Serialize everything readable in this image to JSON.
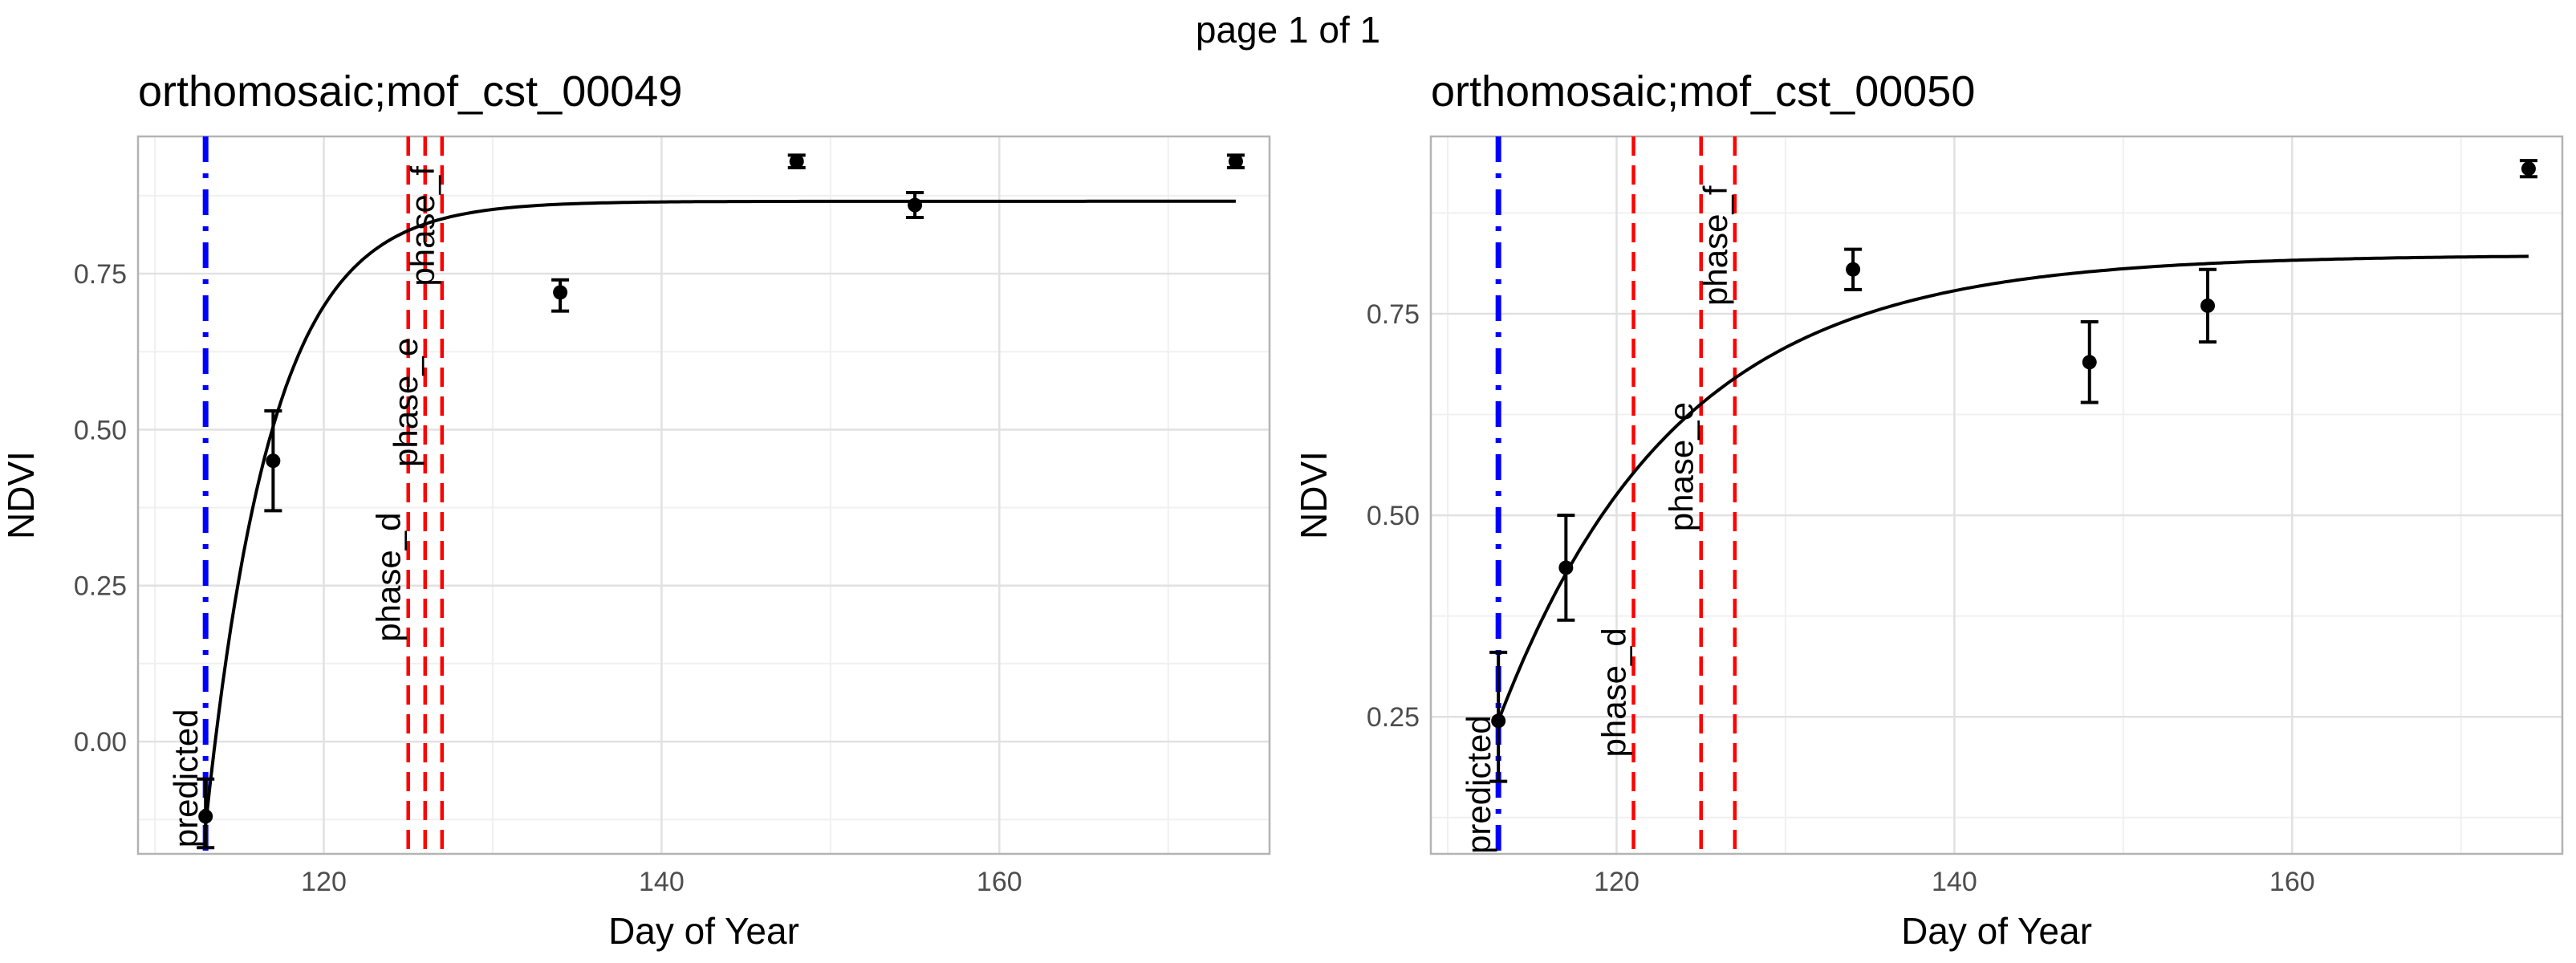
{
  "page": {
    "title": "page 1 of 1"
  },
  "chart_data": [
    {
      "type": "line",
      "title": "orthomosaic;mof_cst_00049",
      "xlabel": "Day of Year",
      "ylabel": "NDVI",
      "xlim": [
        109,
        176
      ],
      "ylim": [
        -0.18,
        0.97
      ],
      "x_ticks": [
        120,
        140,
        160
      ],
      "y_ticks": [
        0.0,
        0.25,
        0.5,
        0.75
      ],
      "y_tick_labels": [
        "0.00",
        "0.25",
        "0.50",
        "0.75"
      ],
      "grid": true,
      "points": [
        {
          "x": 113,
          "y": -0.12,
          "ymin": -0.17,
          "ymax": -0.06
        },
        {
          "x": 117,
          "y": 0.45,
          "ymin": 0.37,
          "ymax": 0.53
        },
        {
          "x": 134,
          "y": 0.72,
          "ymin": 0.69,
          "ymax": 0.74
        },
        {
          "x": 148,
          "y": 0.93,
          "ymin": 0.92,
          "ymax": 0.94
        },
        {
          "x": 155,
          "y": 0.86,
          "ymin": 0.84,
          "ymax": 0.88
        },
        {
          "x": 174,
          "y": 0.93,
          "ymin": 0.92,
          "ymax": 0.94
        }
      ],
      "fitted_curve": {
        "x0": 113,
        "y0": -0.135,
        "asymptote": 0.866,
        "rate": 0.255,
        "x_end": 174
      },
      "vlines": [
        {
          "x": 113,
          "label": "predicted",
          "color": "#0000ff",
          "style": "dashdot"
        },
        {
          "x": 125,
          "label": "phase_d",
          "color": "#ff0000",
          "style": "dashed"
        },
        {
          "x": 126,
          "label": "phase_e",
          "color": "#ff0000",
          "style": "dashed"
        },
        {
          "x": 127,
          "label": "phase_f",
          "color": "#ff0000",
          "style": "dashed"
        }
      ]
    },
    {
      "type": "line",
      "title": "orthomosaic;mof_cst_00050",
      "xlabel": "Day of Year",
      "ylabel": "NDVI",
      "xlim": [
        109,
        176
      ],
      "ylim": [
        0.08,
        0.97
      ],
      "x_ticks": [
        120,
        140,
        160
      ],
      "y_ticks": [
        0.25,
        0.5,
        0.75
      ],
      "y_tick_labels": [
        "0.25",
        "0.50",
        "0.75"
      ],
      "grid": true,
      "points": [
        {
          "x": 113,
          "y": 0.245,
          "ymin": 0.17,
          "ymax": 0.33
        },
        {
          "x": 117,
          "y": 0.435,
          "ymin": 0.37,
          "ymax": 0.5
        },
        {
          "x": 134,
          "y": 0.805,
          "ymin": 0.78,
          "ymax": 0.83
        },
        {
          "x": 148,
          "y": 0.69,
          "ymin": 0.64,
          "ymax": 0.74
        },
        {
          "x": 155,
          "y": 0.76,
          "ymin": 0.715,
          "ymax": 0.805
        },
        {
          "x": 174,
          "y": 0.93,
          "ymin": 0.92,
          "ymax": 0.94
        }
      ],
      "fitted_curve": {
        "x0": 113,
        "y0": 0.245,
        "asymptote": 0.823,
        "rate": 0.095,
        "x_end": 174
      },
      "vlines": [
        {
          "x": 113,
          "label": "predicted",
          "color": "#0000ff",
          "style": "dashdot"
        },
        {
          "x": 121,
          "label": "phase_d",
          "color": "#ff0000",
          "style": "dashed"
        },
        {
          "x": 125,
          "label": "phase_e",
          "color": "#ff0000",
          "style": "dashed"
        },
        {
          "x": 127,
          "label": "phase_f",
          "color": "#ff0000",
          "style": "dashed"
        }
      ]
    }
  ]
}
